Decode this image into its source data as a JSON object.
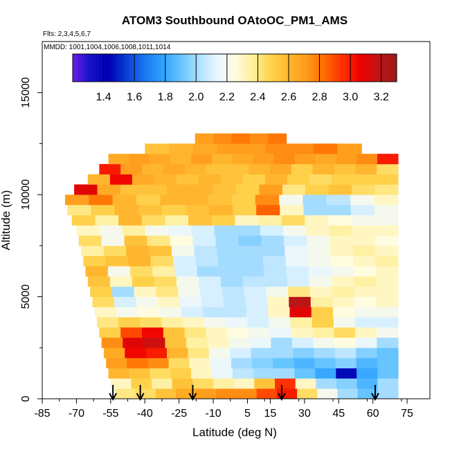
{
  "chart_data": {
    "type": "heatmap",
    "title": "ATOM3 Southbound OAtoOC_PM1_AMS",
    "annotations": [
      "Flts: 2,3,4,5,6,7",
      "MMDD: 1001,1004,1006,1008,1011,1014"
    ],
    "xlabel": "Latitude (deg N)",
    "ylabel": "Altitude (m)",
    "xlim": [
      -85,
      85
    ],
    "ylim": [
      0,
      17500
    ],
    "x_ticks": [
      -85,
      -70,
      -55,
      -40,
      -25,
      -10,
      5,
      15,
      30,
      45,
      60,
      75
    ],
    "y_ticks": [
      0,
      5000,
      10000,
      15000
    ],
    "colorbar": {
      "range": [
        1.2,
        3.3
      ],
      "ticks": [
        "1.4",
        "1.6",
        "1.8",
        "2.0",
        "2.2",
        "2.4",
        "2.6",
        "2.8",
        "3.0",
        "3.2"
      ],
      "colors": [
        "#6a1fe6",
        "#1510c8",
        "#0000b3",
        "#0a3fd6",
        "#1a78f0",
        "#2fa2ff",
        "#66c4ff",
        "#aee0ff",
        "#e8f6ff",
        "#fffce0",
        "#ffef9a",
        "#ffd44d",
        "#ffb52e",
        "#ff9b1a",
        "#ff6a00",
        "#ff3000",
        "#ee0000",
        "#c01515",
        "#9a1a1a"
      ]
    },
    "markers_lat": [
      -54,
      -42,
      -19,
      20,
      61
    ],
    "layers": [
      {
        "alt": [
          0,
          500
        ],
        "lat": [
          -53,
          71
        ],
        "values": [
          2.4,
          2.45,
          2.55,
          2.65,
          2.7,
          2.75,
          2.75,
          2.9,
          3.0,
          2.45,
          2.2,
          2.0,
          1.9,
          2.0
        ]
      },
      {
        "alt": [
          500,
          1000
        ],
        "lat": [
          -55,
          71
        ],
        "values": [
          2.3,
          2.5,
          2.35,
          2.55,
          2.45,
          2.35,
          2.3,
          2.55,
          2.95,
          2.3,
          2.0,
          1.95,
          1.85,
          2.0
        ]
      },
      {
        "alt": [
          1000,
          1500
        ],
        "lat": [
          -56,
          71
        ],
        "values": [
          2.6,
          2.55,
          2.45,
          2.5,
          2.3,
          2.15,
          2.05,
          2.0,
          2.0,
          1.9,
          1.8,
          1.45,
          1.8,
          1.9
        ]
      },
      {
        "alt": [
          1500,
          2000
        ],
        "lat": [
          -57,
          71
        ],
        "values": [
          2.7,
          2.8,
          2.75,
          2.45,
          2.3,
          2.15,
          2.0,
          1.95,
          1.9,
          1.85,
          1.9,
          1.95,
          1.85,
          1.9
        ]
      },
      {
        "alt": [
          2000,
          2500
        ],
        "lat": [
          -58,
          71
        ],
        "values": [
          2.65,
          3.05,
          3.0,
          2.6,
          2.4,
          2.2,
          2.1,
          2.0,
          2.0,
          1.95,
          2.0,
          2.05,
          1.95,
          1.9
        ]
      },
      {
        "alt": [
          2500,
          3000
        ],
        "lat": [
          -59,
          71
        ],
        "values": [
          2.75,
          3.1,
          3.15,
          2.55,
          2.35,
          2.3,
          2.2,
          2.15,
          2.0,
          2.1,
          2.2,
          2.25,
          2.15,
          2.0
        ]
      },
      {
        "alt": [
          3000,
          3500
        ],
        "lat": [
          -60,
          71
        ],
        "values": [
          2.5,
          2.9,
          3.05,
          2.55,
          2.4,
          2.3,
          2.25,
          2.2,
          2.15,
          2.3,
          2.35,
          2.45,
          2.3,
          2.2
        ]
      },
      {
        "alt": [
          3500,
          4000
        ],
        "lat": [
          -61,
          71
        ],
        "values": [
          2.4,
          2.5,
          2.45,
          2.35,
          2.3,
          2.2,
          2.15,
          2.1,
          2.2,
          2.35,
          2.5,
          2.2,
          2.1,
          2.1
        ]
      },
      {
        "alt": [
          4000,
          4500
        ],
        "lat": [
          -62,
          71
        ],
        "values": [
          2.3,
          2.2,
          2.25,
          2.2,
          2.1,
          2.05,
          2.05,
          2.1,
          2.3,
          3.1,
          2.5,
          2.25,
          2.2,
          2.2
        ]
      },
      {
        "alt": [
          4500,
          5000
        ],
        "lat": [
          -63,
          71
        ],
        "values": [
          2.45,
          2.1,
          2.2,
          2.3,
          2.15,
          2.1,
          2.05,
          2.1,
          2.3,
          3.2,
          2.35,
          2.3,
          2.25,
          2.3
        ]
      },
      {
        "alt": [
          5000,
          5500
        ],
        "lat": [
          -64,
          71
        ],
        "values": [
          2.5,
          2.0,
          2.3,
          2.4,
          2.2,
          2.1,
          2.05,
          2.1,
          2.2,
          2.4,
          2.3,
          2.35,
          2.3,
          2.3
        ]
      },
      {
        "alt": [
          5500,
          6000
        ],
        "lat": [
          -65,
          71
        ],
        "values": [
          2.55,
          2.3,
          2.5,
          2.45,
          2.2,
          2.1,
          2.0,
          2.05,
          2.05,
          2.1,
          2.2,
          2.3,
          2.35,
          2.3
        ]
      },
      {
        "alt": [
          6000,
          6500
        ],
        "lat": [
          -66,
          71
        ],
        "values": [
          2.6,
          2.2,
          2.45,
          2.35,
          2.1,
          2.0,
          2.0,
          2.0,
          2.05,
          2.1,
          2.15,
          2.2,
          2.25,
          2.3
        ]
      },
      {
        "alt": [
          6500,
          7000
        ],
        "lat": [
          -67,
          71
        ],
        "values": [
          2.5,
          2.55,
          2.6,
          2.45,
          2.1,
          2.05,
          2.0,
          2.0,
          2.05,
          2.15,
          2.2,
          2.25,
          2.3,
          2.35
        ]
      },
      {
        "alt": [
          7000,
          7500
        ],
        "lat": [
          -68,
          71
        ],
        "values": [
          2.35,
          2.45,
          2.6,
          2.55,
          2.2,
          2.05,
          2.0,
          2.0,
          2.0,
          2.15,
          2.2,
          2.3,
          2.35,
          2.3
        ]
      },
      {
        "alt": [
          7500,
          8000
        ],
        "lat": [
          -69,
          71
        ],
        "values": [
          2.45,
          2.2,
          2.55,
          2.4,
          2.25,
          2.1,
          2.0,
          1.95,
          2.0,
          2.1,
          2.2,
          2.3,
          2.3,
          2.25
        ]
      },
      {
        "alt": [
          8000,
          8500
        ],
        "lat": [
          -70,
          71
        ],
        "values": [
          2.3,
          2.2,
          2.35,
          2.2,
          2.15,
          2.1,
          2.0,
          2.0,
          2.1,
          2.2,
          2.3,
          2.35,
          2.3,
          2.3
        ]
      },
      {
        "alt": [
          8500,
          9000
        ],
        "lat": [
          -72,
          71
        ],
        "values": [
          2.5,
          2.35,
          2.6,
          2.45,
          2.35,
          2.55,
          2.5,
          2.3,
          2.35,
          2.45,
          2.3,
          2.25,
          2.2,
          2.2
        ]
      },
      {
        "alt": [
          9000,
          9500
        ],
        "lat": [
          -74,
          71
        ],
        "values": [
          2.4,
          2.5,
          2.6,
          2.55,
          2.5,
          2.55,
          2.6,
          2.5,
          2.85,
          2.3,
          2.0,
          2.0,
          2.1,
          2.2
        ]
      },
      {
        "alt": [
          9500,
          10000
        ],
        "lat": [
          -75,
          71
        ],
        "values": [
          2.7,
          2.8,
          2.6,
          2.5,
          2.6,
          2.6,
          2.55,
          2.5,
          2.75,
          2.2,
          2.0,
          2.05,
          2.2,
          2.3
        ]
      },
      {
        "alt": [
          10000,
          10500
        ],
        "lat": [
          -71,
          71
        ],
        "values": [
          3.1,
          2.65,
          2.55,
          2.55,
          2.6,
          2.6,
          2.55,
          2.5,
          2.7,
          2.4,
          2.5,
          2.55,
          2.45,
          2.4
        ]
      },
      {
        "alt": [
          10500,
          11000
        ],
        "lat": [
          -65,
          71
        ],
        "values": [
          2.6,
          3.05,
          2.65,
          2.6,
          2.55,
          2.6,
          2.55,
          2.5,
          2.6,
          2.5,
          2.45,
          2.5,
          2.5,
          2.5
        ]
      },
      {
        "alt": [
          11000,
          11500
        ],
        "lat": [
          -60,
          71
        ],
        "values": [
          3.0,
          2.7,
          2.6,
          2.65,
          2.6,
          2.55,
          2.55,
          2.6,
          2.65,
          2.5,
          2.6,
          2.55,
          2.6,
          2.45
        ]
      },
      {
        "alt": [
          11500,
          12000
        ],
        "lat": [
          -56,
          71
        ],
        "values": [
          2.65,
          2.7,
          2.65,
          2.6,
          2.7,
          2.6,
          2.65,
          2.7,
          2.75,
          2.7,
          2.65,
          2.7,
          2.75,
          3.0
        ]
      },
      {
        "alt": [
          12000,
          12500
        ],
        "lat": [
          -40,
          55
        ],
        "values": [
          2.55,
          2.6,
          2.65,
          2.7,
          2.7,
          2.75,
          2.75,
          2.8,
          2.7
        ]
      },
      {
        "alt": [
          12500,
          13000
        ],
        "lat": [
          -18,
          22
        ],
        "values": [
          2.7,
          2.75,
          2.8,
          2.75,
          2.8
        ]
      }
    ]
  }
}
